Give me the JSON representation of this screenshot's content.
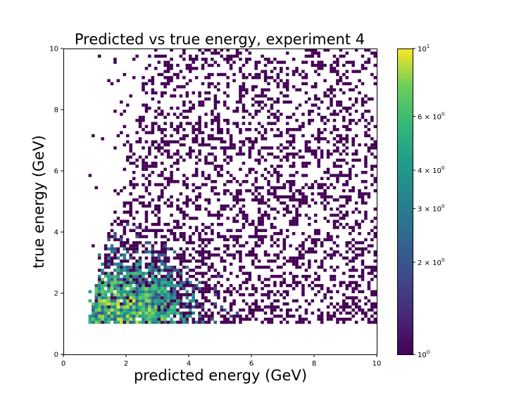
{
  "chart_data": {
    "type": "heatmap",
    "title": "Predicted vs true energy, experiment 4",
    "xlabel": "predicted energy (GeV)",
    "ylabel": "true energy (GeV)",
    "xlim": [
      0,
      10
    ],
    "ylim": [
      0,
      10
    ],
    "x_ticks": [
      "0",
      "2",
      "4",
      "6",
      "8",
      "10"
    ],
    "y_ticks": [
      "0",
      "2",
      "4",
      "6",
      "8",
      "10"
    ],
    "x_tick_values": [
      0,
      2,
      4,
      6,
      8,
      10
    ],
    "y_tick_values": [
      0,
      2,
      4,
      6,
      8,
      10
    ],
    "bins": 100,
    "colormap": "viridis",
    "color_scale": "log",
    "grid": false,
    "colorbar": {
      "range": [
        1,
        10
      ],
      "tick_values": [
        1,
        2,
        3,
        4,
        6,
        10
      ],
      "tick_labels": [
        {
          "base": "10",
          "exp": "0",
          "coef": ""
        },
        {
          "base": "10",
          "exp": "0",
          "coef": "2 × "
        },
        {
          "base": "10",
          "exp": "0",
          "coef": "3 × "
        },
        {
          "base": "10",
          "exp": "0",
          "coef": "4 × "
        },
        {
          "base": "10",
          "exp": "0",
          "coef": "6 × "
        },
        {
          "base": "10",
          "exp": "1",
          "coef": ""
        }
      ]
    },
    "density_model": {
      "x_min_offset": 0.8,
      "y_floor": 1.0,
      "peak": [
        2.0,
        1.4
      ],
      "peak_count": 10,
      "background_fill_rate": 0.38
    }
  }
}
